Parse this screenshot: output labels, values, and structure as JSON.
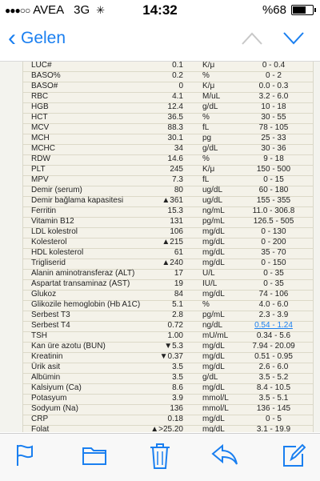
{
  "status_bar": {
    "carrier": "AVEA",
    "network": "3G",
    "time": "14:32",
    "battery_text": "%68",
    "battery_level": 0.68
  },
  "nav": {
    "back_label": "Gelen"
  },
  "lab_results": [
    {
      "name": "LUC#",
      "value": "0.1",
      "unit": "K/μ",
      "range": "0 - 0.4"
    },
    {
      "name": "BASO%",
      "value": "0.2",
      "unit": "%",
      "range": "0 - 2"
    },
    {
      "name": "BASO#",
      "value": "0",
      "unit": "K/μ",
      "range": "0.0 - 0.3"
    },
    {
      "name": "RBC",
      "value": "4.1",
      "unit": "M/uL",
      "range": "3.2 - 6.0"
    },
    {
      "name": "HGB",
      "value": "12.4",
      "unit": "g/dL",
      "range": "10 - 18"
    },
    {
      "name": "HCT",
      "value": "36.5",
      "unit": "%",
      "range": "30 - 55"
    },
    {
      "name": "MCV",
      "value": "88.3",
      "unit": "fL",
      "range": "78 - 105"
    },
    {
      "name": "MCH",
      "value": "30.1",
      "unit": "pg",
      "range": "25 - 33"
    },
    {
      "name": "MCHC",
      "value": "34",
      "unit": "g/dL",
      "range": "30 - 36"
    },
    {
      "name": "RDW",
      "value": "14.6",
      "unit": "%",
      "range": "9 - 18"
    },
    {
      "name": "PLT",
      "value": "245",
      "unit": "K/μ",
      "range": "150 - 500"
    },
    {
      "name": "MPV",
      "value": "7.3",
      "unit": "fL",
      "range": "0 - 15"
    },
    {
      "name": "Demir (serum)",
      "value": "80",
      "unit": "ug/dL",
      "range": "60 - 180"
    },
    {
      "name": "Demir bağlama kapasitesi",
      "value": "▲361",
      "unit": "ug/dL",
      "range": "155 - 355"
    },
    {
      "name": "Ferritin",
      "value": "15.3",
      "unit": "ng/mL",
      "range": "11.0 - 306.8"
    },
    {
      "name": "Vitamin B12",
      "value": "131",
      "unit": "pg/mL",
      "range": "126.5 - 505"
    },
    {
      "name": "LDL kolestrol",
      "value": "106",
      "unit": "mg/dL",
      "range": "0 - 130"
    },
    {
      "name": "Kolesterol",
      "value": "▲215",
      "unit": "mg/dL",
      "range": "0 - 200"
    },
    {
      "name": "HDL kolesterol",
      "value": "61",
      "unit": "mg/dL",
      "range": "35 - 70"
    },
    {
      "name": "Trigliserid",
      "value": "▲240",
      "unit": "mg/dL",
      "range": "0 - 150"
    },
    {
      "name": "Alanin aminotransferaz (ALT)",
      "value": "17",
      "unit": "U/L",
      "range": "0 - 35"
    },
    {
      "name": "Aspartat transaminaz (AST)",
      "value": "19",
      "unit": "IU/L",
      "range": "0 - 35"
    },
    {
      "name": "Glukoz",
      "value": "84",
      "unit": "mg/dL",
      "range": "74 - 106"
    },
    {
      "name": "Glikozile hemoglobin (Hb A1C)",
      "value": "5.1",
      "unit": "%",
      "range": "4.0 - 6.0"
    },
    {
      "name": "Serbest T3",
      "value": "2.8",
      "unit": "pg/mL",
      "range": "2.3 - 3.9"
    },
    {
      "name": "Serbest T4",
      "value": "0.72",
      "unit": "ng/dL",
      "range": "0.54 - 1.24",
      "link": true
    },
    {
      "name": "TSH",
      "value": "1.00",
      "unit": "mU/mL",
      "range": "0.34 - 5.6"
    },
    {
      "name": "Kan üre azotu (BUN)",
      "value": "▼5.3",
      "unit": "mg/dL",
      "range": "7.94 - 20.09"
    },
    {
      "name": "Kreatinin",
      "value": "▼0.37",
      "unit": "mg/dL",
      "range": "0.51 - 0.95"
    },
    {
      "name": "Ürik asit",
      "value": "3.5",
      "unit": "mg/dL",
      "range": "2.6 - 6.0"
    },
    {
      "name": "Albümin",
      "value": "3.5",
      "unit": "g/dL",
      "range": "3.5 - 5.2"
    },
    {
      "name": "Kalsiyum (Ca)",
      "value": "8.6",
      "unit": "mg/dL",
      "range": "8.4 - 10.5"
    },
    {
      "name": "Potasyum",
      "value": "3.9",
      "unit": "mmol/L",
      "range": "3.5 - 5.1"
    },
    {
      "name": "Sodyum (Na)",
      "value": "136",
      "unit": "mmol/L",
      "range": "136 - 145"
    },
    {
      "name": "CRP",
      "value": "0.18",
      "unit": "mg/dL",
      "range": "0 - 5"
    },
    {
      "name": "Folat",
      "value": "▲>25.20",
      "unit": "mg/dL",
      "range": "3.1 - 19.9"
    }
  ],
  "colors": {
    "accent": "#1a7ff0",
    "table_bg": "#f4f2e9"
  },
  "toolbar_icons": [
    "flag-icon",
    "folder-icon",
    "trash-icon",
    "reply-icon",
    "compose-icon"
  ]
}
